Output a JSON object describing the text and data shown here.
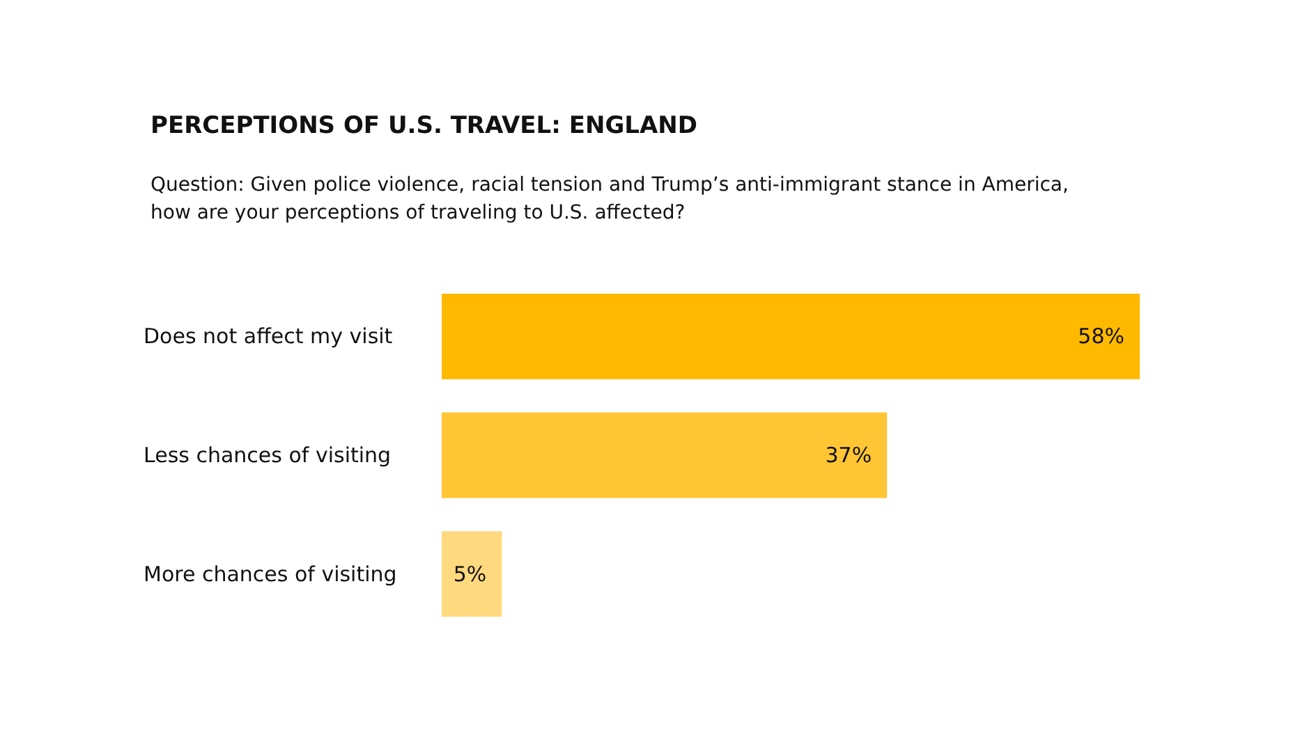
{
  "chart_data": {
    "type": "bar",
    "orientation": "horizontal",
    "title": "PERCEPTIONS OF U.S. TRAVEL: ENGLAND",
    "subtitle": "Question: Given police violence, racial tension and Trump’s anti-immigrant stance in America, how are your perceptions of traveling to U.S. affected?",
    "categories": [
      "Does not affect my visit",
      "Less chances of visiting",
      "More chances of visiting"
    ],
    "values": [
      58,
      37,
      5
    ],
    "colors": [
      "#ffb900",
      "#ffc535",
      "#ffd97f"
    ],
    "value_labels": [
      "58%",
      "37%",
      "5%"
    ],
    "tick_labels": "y"
  }
}
